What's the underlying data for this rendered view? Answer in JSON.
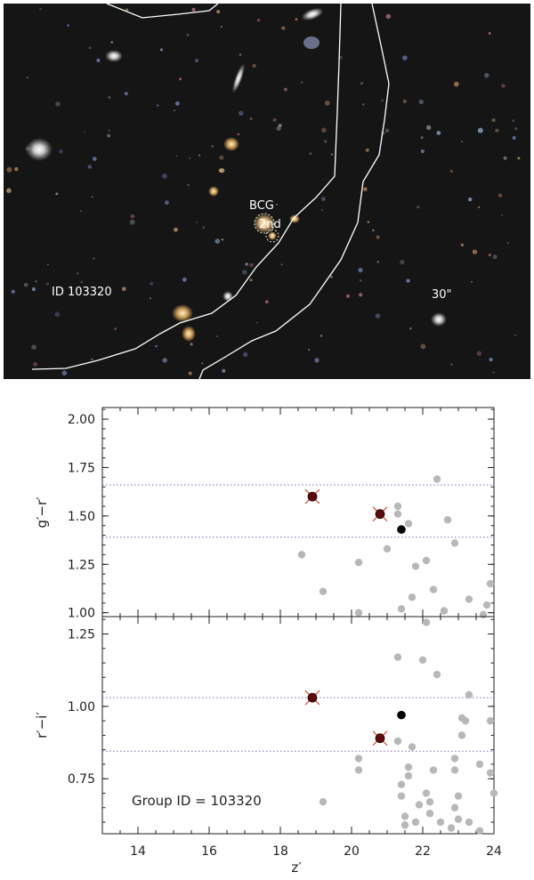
{
  "image_panel": {
    "labels": {
      "bcg": "BCG",
      "second": "2nd",
      "id": "ID 103320",
      "scale": "30\""
    },
    "colors": {
      "background": "#141414",
      "contour": "#ffffff",
      "bcg_marker": "#e8d9b0"
    }
  },
  "chart_data": [
    {
      "type": "scatter",
      "title": "",
      "xlabel": "",
      "ylabel": "g′−r′",
      "xlim": [
        13,
        24
      ],
      "ylim": [
        0.98,
        2.06
      ],
      "yticks": [
        1.0,
        1.25,
        1.5,
        1.75,
        2.0
      ],
      "ytick_labels": [
        "1.00",
        "1.25",
        "1.50",
        "1.75",
        "2.00"
      ],
      "hlines": [
        1.66,
        1.39
      ],
      "grid": false,
      "series": [
        {
          "marker": "gray-dot",
          "color": "#b8b8b8",
          "points": [
            [
              18.6,
              1.3
            ],
            [
              19.2,
              1.11
            ],
            [
              20.2,
              1.26
            ],
            [
              20.2,
              1.0
            ],
            [
              21.0,
              1.33
            ],
            [
              21.3,
              1.55
            ],
            [
              21.3,
              1.51
            ],
            [
              21.4,
              1.02
            ],
            [
              21.6,
              1.46
            ],
            [
              21.8,
              1.24
            ],
            [
              21.7,
              1.08
            ],
            [
              22.1,
              1.27
            ],
            [
              22.3,
              1.12
            ],
            [
              22.4,
              1.69
            ],
            [
              22.6,
              1.01
            ],
            [
              22.7,
              1.48
            ],
            [
              22.9,
              1.36
            ],
            [
              23.3,
              1.07
            ],
            [
              23.7,
              0.99
            ],
            [
              23.8,
              1.04
            ],
            [
              23.9,
              1.15
            ]
          ]
        },
        {
          "marker": "black-dot",
          "color": "#000000",
          "points": [
            [
              21.4,
              1.43
            ]
          ]
        },
        {
          "marker": "red-star",
          "color": "#5a0d0d",
          "points": [
            [
              18.9,
              1.6
            ],
            [
              20.8,
              1.51
            ]
          ]
        }
      ]
    },
    {
      "type": "scatter",
      "title": "",
      "xlabel": "z′",
      "ylabel": "r′−i′",
      "xlim": [
        13,
        24
      ],
      "ylim": [
        0.56,
        1.31
      ],
      "xticks": [
        14,
        16,
        18,
        20,
        22,
        24
      ],
      "xtick_labels": [
        "14",
        "16",
        "18",
        "20",
        "22",
        "24"
      ],
      "yticks": [
        0.75,
        1.0,
        1.25
      ],
      "ytick_labels": [
        "0.75",
        "1.00",
        "1.25"
      ],
      "hlines": [
        1.03,
        0.845
      ],
      "grid": false,
      "annotation": "Group ID = 103320",
      "annotation_position": "bottom-left",
      "series": [
        {
          "marker": "gray-dot",
          "color": "#b8b8b8",
          "points": [
            [
              19.2,
              0.67
            ],
            [
              20.2,
              0.82
            ],
            [
              20.2,
              0.78
            ],
            [
              21.3,
              1.17
            ],
            [
              21.3,
              0.88
            ],
            [
              21.4,
              0.73
            ],
            [
              21.4,
              0.69
            ],
            [
              21.5,
              0.62
            ],
            [
              21.6,
              0.79
            ],
            [
              21.6,
              0.76
            ],
            [
              21.5,
              0.59
            ],
            [
              21.7,
              0.86
            ],
            [
              21.8,
              0.6
            ],
            [
              21.9,
              0.66
            ],
            [
              22.0,
              1.16
            ],
            [
              22.1,
              0.7
            ],
            [
              22.1,
              1.29
            ],
            [
              22.2,
              0.67
            ],
            [
              22.3,
              0.78
            ],
            [
              22.4,
              1.11
            ],
            [
              22.2,
              0.63
            ],
            [
              22.5,
              0.6
            ],
            [
              22.8,
              0.58
            ],
            [
              22.9,
              0.78
            ],
            [
              22.9,
              0.82
            ],
            [
              22.9,
              0.65
            ],
            [
              23.0,
              0.61
            ],
            [
              23.0,
              0.69
            ],
            [
              23.1,
              0.96
            ],
            [
              23.1,
              0.9
            ],
            [
              23.2,
              0.95
            ],
            [
              23.3,
              1.04
            ],
            [
              23.3,
              0.6
            ],
            [
              23.6,
              0.8
            ],
            [
              23.6,
              0.57
            ],
            [
              23.9,
              0.95
            ],
            [
              23.9,
              0.77
            ],
            [
              24.0,
              0.7
            ]
          ]
        },
        {
          "marker": "black-dot",
          "color": "#000000",
          "points": [
            [
              21.4,
              0.97
            ]
          ]
        },
        {
          "marker": "red-star",
          "color": "#5a0d0d",
          "points": [
            [
              18.9,
              1.03
            ],
            [
              20.8,
              0.89
            ]
          ]
        }
      ]
    }
  ]
}
